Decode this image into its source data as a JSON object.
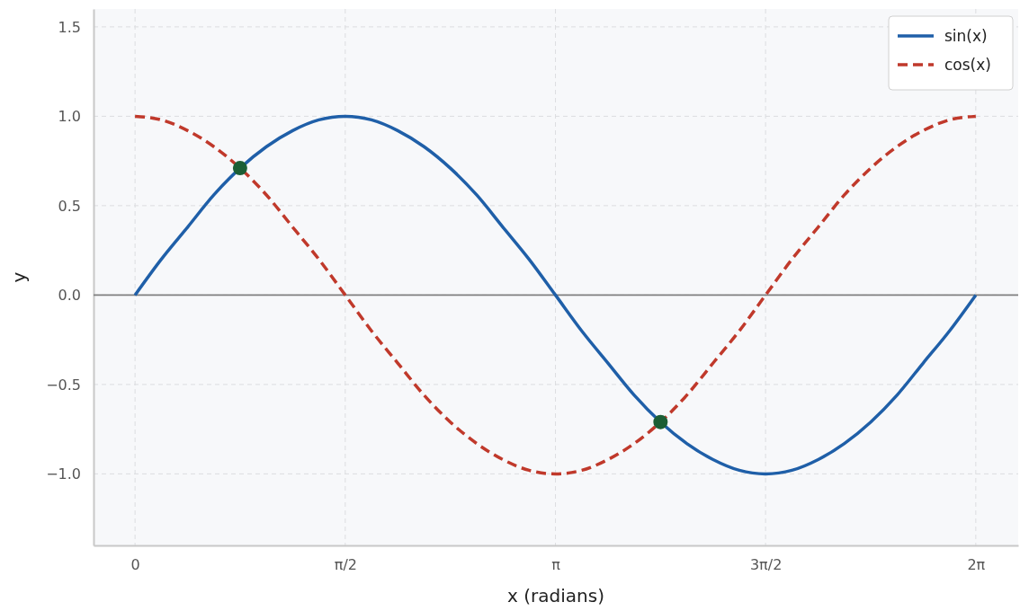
{
  "chart_data": {
    "type": "line",
    "xlabel": "x (radians)",
    "ylabel": "y",
    "xlim": [
      -0.31,
      6.6
    ],
    "ylim": [
      -1.4,
      1.6
    ],
    "xticks": [
      {
        "value": 0,
        "label": "0"
      },
      {
        "value": 1.571,
        "label": "π/2"
      },
      {
        "value": 3.142,
        "label": "π"
      },
      {
        "value": 4.712,
        "label": "3π/2"
      },
      {
        "value": 6.283,
        "label": "2π"
      }
    ],
    "yticks": [
      {
        "value": -1,
        "label": "−1.0"
      },
      {
        "value": -0.5,
        "label": "−0.5"
      },
      {
        "value": 0,
        "label": "0.0"
      },
      {
        "value": 0.5,
        "label": "0.5"
      },
      {
        "value": 1,
        "label": "1.0"
      },
      {
        "value": 1.5,
        "label": "1.5"
      }
    ],
    "x": [
      0,
      0.196,
      0.393,
      0.589,
      0.785,
      0.982,
      1.178,
      1.374,
      1.571,
      1.767,
      1.963,
      2.16,
      2.356,
      2.553,
      2.749,
      2.945,
      3.142,
      3.338,
      3.534,
      3.731,
      3.927,
      4.123,
      4.32,
      4.516,
      4.712,
      4.909,
      5.105,
      5.301,
      5.498,
      5.694,
      5.89,
      6.087,
      6.283
    ],
    "series": [
      {
        "name": "sin(x)",
        "color": "#1f5fa8",
        "line_style": "solid",
        "values": [
          0,
          0.2,
          0.38,
          0.56,
          0.71,
          0.83,
          0.92,
          0.98,
          1,
          0.98,
          0.92,
          0.83,
          0.71,
          0.56,
          0.38,
          0.2,
          0,
          -0.2,
          -0.38,
          -0.56,
          -0.71,
          -0.83,
          -0.92,
          -0.98,
          -1,
          -0.98,
          -0.92,
          -0.83,
          -0.71,
          -0.56,
          -0.38,
          -0.2,
          0
        ]
      },
      {
        "name": "cos(x)",
        "color": "#c0392b",
        "line_style": "dashed",
        "values": [
          1,
          0.98,
          0.92,
          0.83,
          0.71,
          0.56,
          0.38,
          0.2,
          0,
          -0.2,
          -0.38,
          -0.56,
          -0.71,
          -0.83,
          -0.92,
          -0.98,
          -1,
          -0.98,
          -0.92,
          -0.83,
          -0.71,
          -0.56,
          -0.38,
          -0.2,
          0,
          0.2,
          0.38,
          0.56,
          0.71,
          0.83,
          0.92,
          0.98,
          1
        ]
      },
      {
        "type": "scatter",
        "color": "#1b5e35",
        "marker": "circle",
        "x": [
          0.785,
          3.927
        ],
        "values": [
          0.71,
          -0.71
        ]
      }
    ],
    "ref_lines": [
      {
        "axis": "y",
        "value": 0,
        "color": "#808080"
      }
    ],
    "grid": true,
    "legend": "top right"
  }
}
